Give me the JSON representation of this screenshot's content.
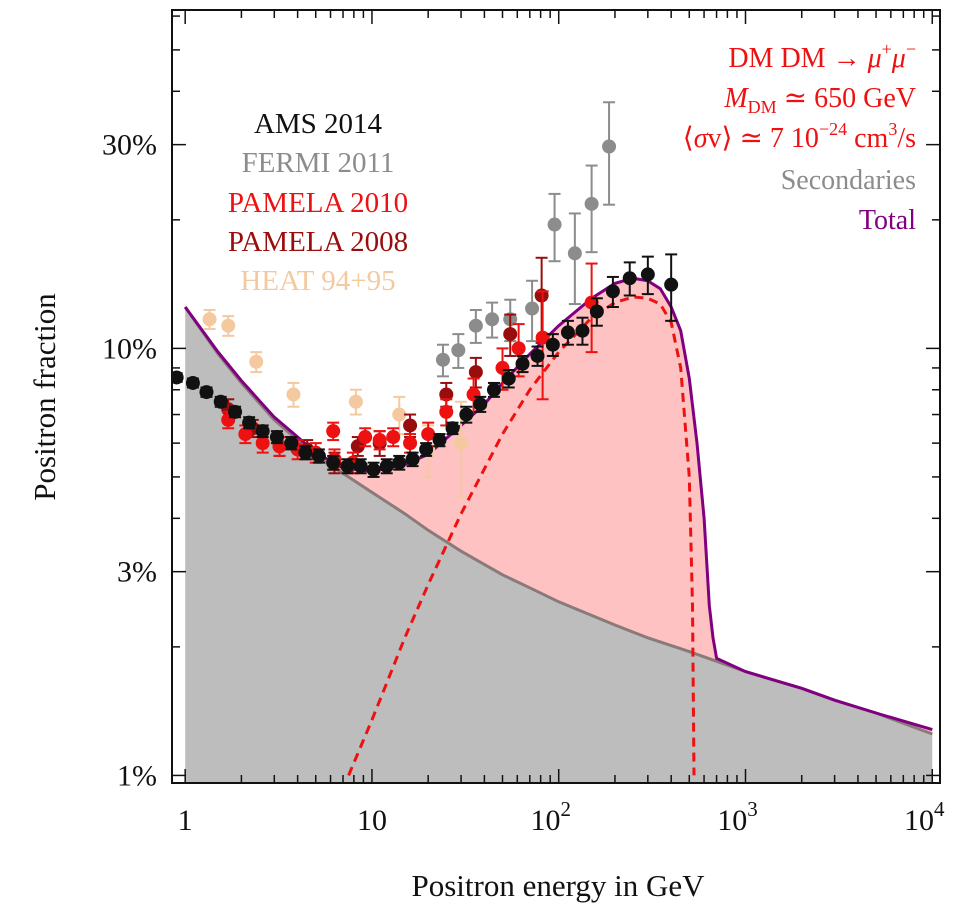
{
  "chart_data": {
    "type": "scatter",
    "xlabel": "Positron energy in GeV",
    "ylabel": "Positron  fraction",
    "x_scale": "log",
    "y_scale": "log",
    "xlim": [
      0.85,
      11000
    ],
    "ylim": [
      0.0096,
      0.62
    ],
    "x_ticks": [
      {
        "value": 1,
        "label": "1"
      },
      {
        "value": 10,
        "label": "10"
      },
      {
        "value": 100,
        "label": "10",
        "sup": "2"
      },
      {
        "value": 1000,
        "label": "10",
        "sup": "3"
      },
      {
        "value": 10000,
        "label": "10",
        "sup": "4"
      }
    ],
    "y_ticks": [
      {
        "value": 0.01,
        "label": "1%"
      },
      {
        "value": 0.03,
        "label": "3%"
      },
      {
        "value": 0.1,
        "label": "10%"
      },
      {
        "value": 0.3,
        "label": "30%"
      }
    ],
    "legend_left": [
      {
        "label": "AMS 2014",
        "color": "#111111"
      },
      {
        "label": "FERMI 2011",
        "color": "#8c8c8c"
      },
      {
        "label": "PAMELA 2010",
        "color": "#ee1111"
      },
      {
        "label": "PAMELA 2008",
        "color": "#9a0d0d"
      },
      {
        "label": "HEAT 94+95",
        "color": "#f5c9a0"
      }
    ],
    "legend_right": {
      "line1": {
        "lhs": "DM DM → ",
        "mu": "μ",
        "plus": "+",
        "minus": "−"
      },
      "line2": {
        "M": "M",
        "sub": "DM",
        "rest": " ≃ 650 GeV"
      },
      "line3": {
        "open": "⟨",
        "sigma": "σ",
        "v": "v",
        "close": "⟩",
        "mid": " ≃ 7 10",
        "exp": "−24",
        "unit": " cm",
        "unit_exp": "3",
        "tail": "/s"
      },
      "line4": "Secondaries",
      "line5": "Total",
      "color_dm": "#ee1111",
      "color_secondaries": "#8c8c8c",
      "color_total": "#800080"
    },
    "curves": {
      "secondaries": {
        "color": "#8a7a7a",
        "fill": "#bdbdbd",
        "points": [
          [
            1,
            0.125
          ],
          [
            1.5,
            0.097
          ],
          [
            2,
            0.083
          ],
          [
            3,
            0.068
          ],
          [
            4,
            0.061
          ],
          [
            5,
            0.056
          ],
          [
            7,
            0.051
          ],
          [
            10,
            0.046
          ],
          [
            15,
            0.041
          ],
          [
            20,
            0.0375
          ],
          [
            30,
            0.0335
          ],
          [
            50,
            0.0295
          ],
          [
            70,
            0.0275
          ],
          [
            100,
            0.0255
          ],
          [
            200,
            0.0225
          ],
          [
            300,
            0.021
          ],
          [
            500,
            0.0195
          ],
          [
            700,
            0.0185
          ],
          [
            1000,
            0.0175
          ],
          [
            2000,
            0.016
          ],
          [
            3000,
            0.015
          ],
          [
            5000,
            0.014
          ],
          [
            10000,
            0.0125
          ]
        ]
      },
      "dm": {
        "color": "#ee1111",
        "points": [
          [
            7.5,
            0.01
          ],
          [
            10,
            0.0135
          ],
          [
            15,
            0.021
          ],
          [
            20,
            0.028
          ],
          [
            30,
            0.041
          ],
          [
            50,
            0.063
          ],
          [
            70,
            0.08
          ],
          [
            100,
            0.098
          ],
          [
            150,
            0.118
          ],
          [
            200,
            0.128
          ],
          [
            250,
            0.132
          ],
          [
            300,
            0.131
          ],
          [
            350,
            0.127
          ],
          [
            400,
            0.115
          ],
          [
            450,
            0.09
          ],
          [
            500,
            0.05
          ],
          [
            520,
            0.025
          ],
          [
            530,
            0.01
          ]
        ]
      },
      "total": {
        "color": "#800080",
        "fill": "#ffc2c2",
        "points": [
          [
            1,
            0.125
          ],
          [
            1.5,
            0.098
          ],
          [
            2,
            0.084
          ],
          [
            3,
            0.069
          ],
          [
            4,
            0.062
          ],
          [
            5,
            0.057
          ],
          [
            7,
            0.0525
          ],
          [
            10,
            0.0515
          ],
          [
            15,
            0.0535
          ],
          [
            20,
            0.0565
          ],
          [
            30,
            0.066
          ],
          [
            40,
            0.074
          ],
          [
            50,
            0.083
          ],
          [
            70,
            0.097
          ],
          [
            100,
            0.113
          ],
          [
            150,
            0.131
          ],
          [
            200,
            0.142
          ],
          [
            250,
            0.146
          ],
          [
            300,
            0.144
          ],
          [
            350,
            0.138
          ],
          [
            400,
            0.125
          ],
          [
            450,
            0.11
          ],
          [
            500,
            0.085
          ],
          [
            550,
            0.06
          ],
          [
            600,
            0.04
          ],
          [
            640,
            0.025
          ],
          [
            670,
            0.021
          ],
          [
            700,
            0.0188
          ],
          [
            1000,
            0.0175
          ],
          [
            2000,
            0.016
          ],
          [
            3000,
            0.015
          ],
          [
            5000,
            0.014
          ],
          [
            10000,
            0.0128
          ]
        ]
      }
    },
    "series": [
      {
        "name": "HEAT 94+95",
        "color": "#f5c9a0",
        "points": [
          [
            1.35,
            0.117,
            0.006
          ],
          [
            1.7,
            0.113,
            0.006
          ],
          [
            2.4,
            0.093,
            0.005
          ],
          [
            3.8,
            0.078,
            0.005
          ],
          [
            8.2,
            0.075,
            0.005
          ],
          [
            14,
            0.07,
            0.007
          ],
          [
            20,
            0.058,
            0.008
          ],
          [
            30,
            0.06,
            0.015
          ]
        ]
      },
      {
        "name": "FERMI 2011",
        "color": "#8c8c8c",
        "points": [
          [
            24,
            0.094,
            0.008
          ],
          [
            29,
            0.099,
            0.009
          ],
          [
            36,
            0.113,
            0.01
          ],
          [
            44,
            0.117,
            0.011
          ],
          [
            55,
            0.117,
            0.013
          ],
          [
            72,
            0.124,
            0.02
          ],
          [
            95,
            0.195,
            0.035
          ],
          [
            122,
            0.167,
            0.04
          ],
          [
            150,
            0.218,
            0.05
          ],
          [
            186,
            0.297,
            0.08
          ]
        ]
      },
      {
        "name": "PAMELA 2008",
        "color": "#9a0d0d",
        "points": [
          [
            1.7,
            0.072,
            0.004
          ],
          [
            2.3,
            0.065,
            0.003
          ],
          [
            3.2,
            0.059,
            0.003
          ],
          [
            4.5,
            0.058,
            0.003
          ],
          [
            6.3,
            0.054,
            0.003
          ],
          [
            8.4,
            0.059,
            0.003
          ],
          [
            11,
            0.06,
            0.004
          ],
          [
            16,
            0.066,
            0.004
          ],
          [
            25,
            0.078,
            0.005
          ],
          [
            36,
            0.088,
            0.007
          ],
          [
            55,
            0.108,
            0.012
          ],
          [
            81,
            0.133,
            0.03
          ]
        ]
      },
      {
        "name": "PAMELA 2010",
        "color": "#ee1111",
        "points": [
          [
            1.7,
            0.068,
            0.003
          ],
          [
            2.1,
            0.063,
            0.003
          ],
          [
            2.6,
            0.06,
            0.003
          ],
          [
            3.2,
            0.059,
            0.003
          ],
          [
            4.0,
            0.058,
            0.003
          ],
          [
            5.0,
            0.057,
            0.003
          ],
          [
            6.3,
            0.055,
            0.003
          ],
          [
            7.9,
            0.054,
            0.003
          ],
          [
            6.2,
            0.064,
            0.003
          ],
          [
            9.2,
            0.062,
            0.003
          ],
          [
            11,
            0.061,
            0.003
          ],
          [
            13,
            0.062,
            0.003
          ],
          [
            16,
            0.06,
            0.003
          ],
          [
            20,
            0.063,
            0.004
          ],
          [
            25,
            0.071,
            0.005
          ],
          [
            35,
            0.078,
            0.007
          ],
          [
            50,
            0.09,
            0.01
          ],
          [
            61,
            0.1,
            0.014
          ],
          [
            82,
            0.106,
            0.03
          ],
          [
            150,
            0.128,
            0.03
          ]
        ]
      },
      {
        "name": "AMS 2014",
        "color": "#111111",
        "points": [
          [
            0.9,
            0.0855,
            0.002
          ],
          [
            1.1,
            0.083,
            0.002
          ],
          [
            1.3,
            0.079,
            0.002
          ],
          [
            1.55,
            0.075,
            0.002
          ],
          [
            1.85,
            0.071,
            0.002
          ],
          [
            2.2,
            0.067,
            0.002
          ],
          [
            2.6,
            0.064,
            0.002
          ],
          [
            3.1,
            0.062,
            0.002
          ],
          [
            3.7,
            0.06,
            0.002
          ],
          [
            4.4,
            0.057,
            0.002
          ],
          [
            5.2,
            0.056,
            0.002
          ],
          [
            6.2,
            0.054,
            0.002
          ],
          [
            7.4,
            0.053,
            0.002
          ],
          [
            8.7,
            0.053,
            0.002
          ],
          [
            10.2,
            0.052,
            0.002
          ],
          [
            12,
            0.053,
            0.002
          ],
          [
            14,
            0.054,
            0.002
          ],
          [
            16.5,
            0.055,
            0.002
          ],
          [
            19.5,
            0.058,
            0.002
          ],
          [
            23,
            0.061,
            0.002
          ],
          [
            27,
            0.065,
            0.002
          ],
          [
            32,
            0.07,
            0.003
          ],
          [
            38,
            0.074,
            0.003
          ],
          [
            45,
            0.08,
            0.003
          ],
          [
            54,
            0.085,
            0.004
          ],
          [
            64,
            0.092,
            0.004
          ],
          [
            77,
            0.096,
            0.005
          ],
          [
            93,
            0.102,
            0.006
          ],
          [
            112,
            0.109,
            0.007
          ],
          [
            134,
            0.11,
            0.008
          ],
          [
            160,
            0.122,
            0.009
          ],
          [
            195,
            0.136,
            0.011
          ],
          [
            240,
            0.146,
            0.013
          ],
          [
            300,
            0.149,
            0.015
          ],
          [
            400,
            0.141,
            0.025
          ]
        ]
      }
    ]
  }
}
